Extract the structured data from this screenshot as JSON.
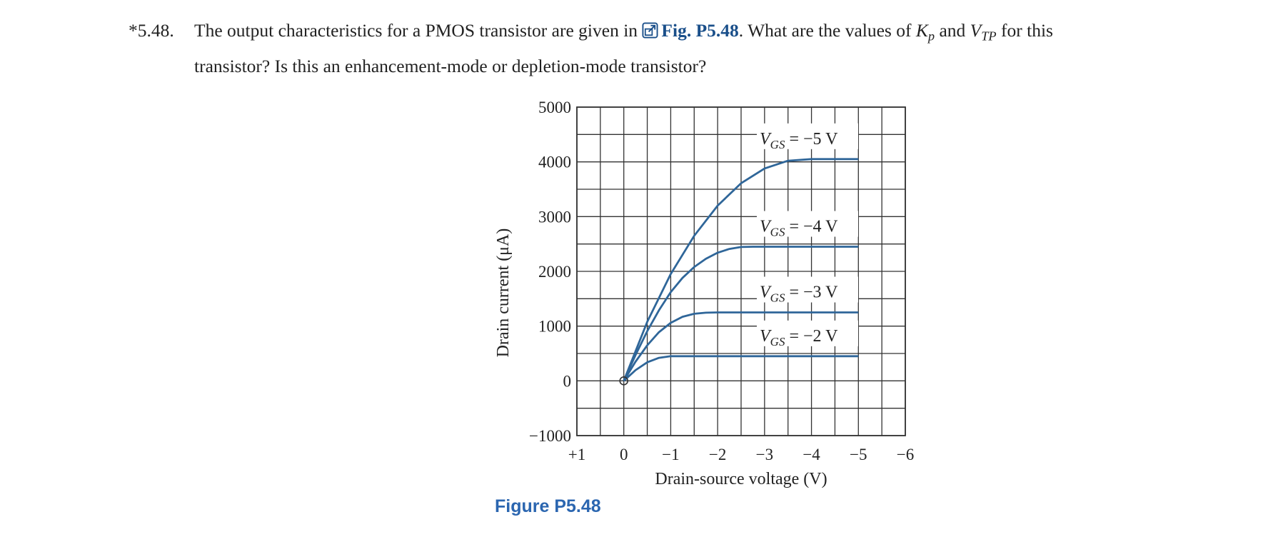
{
  "problem": {
    "number": "*5.48.",
    "text_before": "The output characteristics for a PMOS transistor are given in",
    "fig_link": "Fig. P5.48",
    "text_mid": ". What are the values of",
    "kp_main": "K",
    "kp_sub": "p",
    "and_word": "and",
    "vtp_main": "V",
    "vtp_sub": "TP",
    "text_after": "for this",
    "line2": "transistor? Is this an enhancement-mode or depletion-mode transistor?",
    "icon": "external-link-icon"
  },
  "figure_caption": "Figure P5.48",
  "colors": {
    "curve": "#2f6699",
    "grid": "#333333",
    "caption": "#2b66b0",
    "link": "#1a4f8a"
  },
  "chart_data": {
    "type": "line",
    "title": "",
    "xlabel": "Drain-source voltage (V)",
    "ylabel": "Drain current (μA)",
    "xlim": [
      1,
      -6
    ],
    "ylim": [
      -1000,
      5000
    ],
    "x_ticks": [
      1,
      0,
      -1,
      -2,
      -3,
      -4,
      -5,
      -6
    ],
    "x_tick_labels": [
      "+1",
      "0",
      "−1",
      "−2",
      "−3",
      "−4",
      "−5",
      "−6"
    ],
    "y_ticks": [
      5000,
      4000,
      3000,
      2000,
      1000,
      0,
      -1000
    ],
    "y_tick_labels": [
      "5000",
      "4000",
      "3000",
      "2000",
      "1000",
      "0",
      "−1000"
    ],
    "grid": true,
    "series": [
      {
        "name": "VGS = −2 V",
        "label_main": "V",
        "label_sub": "GS",
        "label_rest": "= −2 V",
        "x": [
          0,
          -0.25,
          -0.5,
          -0.75,
          -1.0,
          -1.5,
          -2,
          -3,
          -4,
          -5
        ],
        "y": [
          0,
          195,
          340,
          420,
          450,
          450,
          450,
          450,
          450,
          450
        ]
      },
      {
        "name": "VGS = −3 V",
        "label_main": "V",
        "label_sub": "GS",
        "label_rest": "= −3 V",
        "x": [
          0,
          -0.25,
          -0.5,
          -0.75,
          -1.0,
          -1.25,
          -1.5,
          -1.75,
          -2.0,
          -2.5,
          -3,
          -4,
          -5
        ],
        "y": [
          0,
          350,
          650,
          890,
          1060,
          1170,
          1225,
          1245,
          1250,
          1250,
          1250,
          1250,
          1250
        ]
      },
      {
        "name": "VGS = −4 V",
        "label_main": "V",
        "label_sub": "GS",
        "label_rest": "= −4 V",
        "x": [
          0,
          -0.25,
          -0.5,
          -0.75,
          -1.0,
          -1.25,
          -1.5,
          -1.75,
          -2.0,
          -2.25,
          -2.5,
          -2.75,
          -3.0,
          -3.5,
          -4,
          -5
        ],
        "y": [
          0,
          470,
          910,
          1290,
          1620,
          1880,
          2080,
          2230,
          2340,
          2410,
          2445,
          2450,
          2450,
          2450,
          2450,
          2450
        ]
      },
      {
        "name": "VGS = −5 V",
        "label_main": "V",
        "label_sub": "GS",
        "label_rest": "= −5 V",
        "x": [
          0,
          -0.5,
          -1.0,
          -1.5,
          -2.0,
          -2.5,
          -3.0,
          -3.5,
          -4.0,
          -4.5,
          -5
        ],
        "y": [
          0,
          1080,
          1950,
          2650,
          3200,
          3610,
          3880,
          4020,
          4050,
          4050,
          4050
        ]
      }
    ]
  }
}
